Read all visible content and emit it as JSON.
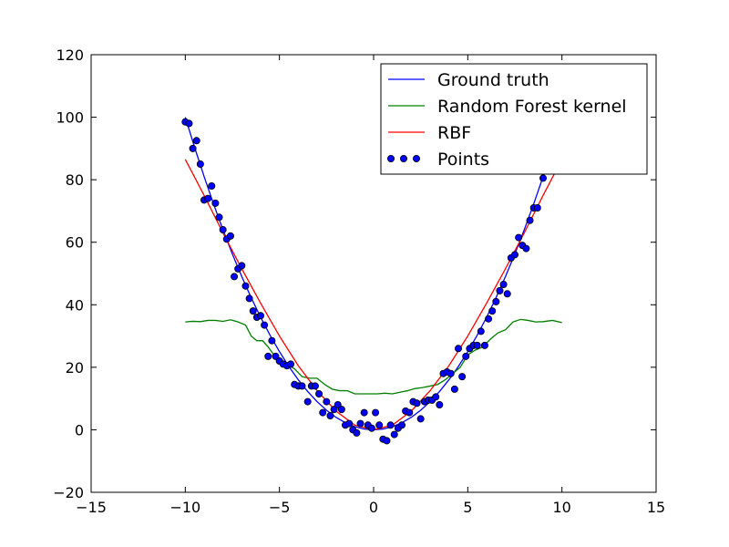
{
  "chart_data": {
    "type": "line",
    "title": "",
    "xlabel": "",
    "ylabel": "",
    "xlim": [
      -15,
      15
    ],
    "ylim": [
      -20,
      120
    ],
    "xticks": [
      -15,
      -10,
      -5,
      0,
      5,
      10,
      15
    ],
    "yticks": [
      -20,
      0,
      20,
      40,
      60,
      80,
      100,
      120
    ],
    "x_tick_labels": [
      "−15",
      "−10",
      "−5",
      "0",
      "5",
      "10",
      "15"
    ],
    "y_tick_labels": [
      "−20",
      "0",
      "20",
      "40",
      "60",
      "80",
      "100",
      "120"
    ],
    "grid": false,
    "legend_position": "top-right",
    "series": [
      {
        "name": "Ground truth",
        "kind": "line",
        "color": "#0000ff",
        "x": [
          -10,
          -9.5,
          -9,
          -8.5,
          -8,
          -7.5,
          -7,
          -6.5,
          -6,
          -5.5,
          -5,
          -4.5,
          -4,
          -3.5,
          -3,
          -2.5,
          -2,
          -1.5,
          -1,
          -0.5,
          0,
          0.5,
          1,
          1.5,
          2,
          2.5,
          3,
          3.5,
          4,
          4.5,
          5,
          5.5,
          6,
          6.5,
          7,
          7.5,
          8,
          8.5,
          9,
          9.5,
          10
        ],
        "y": [
          100,
          90.25,
          81,
          72.25,
          64,
          56.25,
          49,
          42.25,
          36,
          30.25,
          25,
          20.25,
          16,
          12.25,
          9,
          6.25,
          4,
          2.25,
          1,
          0.25,
          0,
          0.25,
          1,
          2.25,
          4,
          6.25,
          9,
          12.25,
          16,
          20.25,
          25,
          30.25,
          36,
          42.25,
          49,
          56.25,
          64,
          72.25,
          81,
          90.25,
          100
        ]
      },
      {
        "name": "Random Forest kernel",
        "kind": "line",
        "color": "#008000",
        "x": [
          -10,
          -9.6,
          -9.2,
          -8.8,
          -8.4,
          -8,
          -7.6,
          -7.2,
          -6.8,
          -6.5,
          -6.2,
          -5.9,
          -5.6,
          -5.3,
          -5,
          -4.6,
          -4.2,
          -3.8,
          -3.4,
          -3,
          -2.6,
          -2.2,
          -1.8,
          -1.4,
          -1,
          -0.6,
          -0.2,
          0.2,
          0.6,
          1,
          1.4,
          1.8,
          2.2,
          2.6,
          3,
          3.4,
          3.8,
          4.2,
          4.6,
          5,
          5.4,
          5.8,
          6.2,
          6.6,
          7,
          7.4,
          7.8,
          8.2,
          8.6,
          9,
          9.5,
          10
        ],
        "y": [
          34.5,
          34.7,
          34.6,
          35,
          35,
          34.7,
          35.2,
          34.5,
          33.5,
          30,
          28.5,
          28.5,
          26.5,
          24,
          22.5,
          21,
          19.5,
          17,
          16.5,
          16.5,
          14.5,
          13,
          12.5,
          12.5,
          11.5,
          11.5,
          11.5,
          11.5,
          11.7,
          11.5,
          12,
          12.5,
          13.2,
          13.5,
          14,
          14.5,
          16,
          18,
          20,
          24,
          25.5,
          26.5,
          29,
          31,
          32,
          34.5,
          35.3,
          35,
          34.5,
          34.6,
          35,
          34.3
        ]
      },
      {
        "name": "RBF",
        "kind": "line",
        "color": "#ff0000",
        "x": [
          -10,
          -9,
          -8,
          -7,
          -6,
          -5,
          -4,
          -3,
          -2,
          -1,
          0,
          1,
          2,
          3,
          4,
          5,
          6,
          7,
          8,
          9,
          10
        ],
        "y": [
          86.5,
          75,
          63,
          51.5,
          40.5,
          30,
          20.5,
          12.5,
          6,
          1.5,
          0,
          1.5,
          6,
          12.5,
          20.5,
          30,
          40.5,
          51.5,
          63,
          75,
          86.5
        ]
      }
    ],
    "scatter": {
      "name": "Points",
      "kind": "scatter",
      "color": "#0000ff",
      "edge_color": "#000000",
      "points": [
        [
          -10,
          98.5
        ],
        [
          -9.8,
          98
        ],
        [
          -9.6,
          90
        ],
        [
          -9.4,
          92.5
        ],
        [
          -9.2,
          85
        ],
        [
          -9,
          73.5
        ],
        [
          -8.8,
          74
        ],
        [
          -8.6,
          78
        ],
        [
          -8.4,
          72.5
        ],
        [
          -8.2,
          68
        ],
        [
          -8,
          64
        ],
        [
          -7.8,
          61
        ],
        [
          -7.6,
          62
        ],
        [
          -7.4,
          49
        ],
        [
          -7.2,
          51.5
        ],
        [
          -7,
          52.5
        ],
        [
          -6.8,
          46
        ],
        [
          -6.6,
          42
        ],
        [
          -6.4,
          38
        ],
        [
          -6.2,
          36
        ],
        [
          -6,
          36.5
        ],
        [
          -5.8,
          33.5
        ],
        [
          -5.6,
          23.5
        ],
        [
          -5.4,
          28.5
        ],
        [
          -5.2,
          23.5
        ],
        [
          -5,
          22
        ],
        [
          -4.8,
          21
        ],
        [
          -4.6,
          20.5
        ],
        [
          -4.4,
          21
        ],
        [
          -4.2,
          14.5
        ],
        [
          -4,
          14
        ],
        [
          -3.8,
          14
        ],
        [
          -3.5,
          9
        ],
        [
          -3.3,
          14
        ],
        [
          -3.1,
          14
        ],
        [
          -2.9,
          11.5
        ],
        [
          -2.7,
          5.5
        ],
        [
          -2.5,
          9
        ],
        [
          -2.3,
          4.5
        ],
        [
          -2.1,
          6.5
        ],
        [
          -1.9,
          8
        ],
        [
          -1.7,
          6.5
        ],
        [
          -1.5,
          1.5
        ],
        [
          -1.3,
          2
        ],
        [
          -1.1,
          0
        ],
        [
          -0.9,
          -1
        ],
        [
          -0.7,
          2
        ],
        [
          -0.5,
          5.5
        ],
        [
          -0.3,
          1.5
        ],
        [
          -0.1,
          0.5
        ],
        [
          0.1,
          5.5
        ],
        [
          0.3,
          1.5
        ],
        [
          0.5,
          -3
        ],
        [
          0.7,
          -3.5
        ],
        [
          0.9,
          1.5
        ],
        [
          1.1,
          -1.5
        ],
        [
          1.3,
          0.5
        ],
        [
          1.5,
          1.5
        ],
        [
          1.7,
          6
        ],
        [
          1.9,
          5.5
        ],
        [
          2.1,
          9
        ],
        [
          2.3,
          8.5
        ],
        [
          2.5,
          3.5
        ],
        [
          2.7,
          9
        ],
        [
          2.9,
          9.5
        ],
        [
          3.1,
          9.5
        ],
        [
          3.3,
          10.5
        ],
        [
          3.5,
          8
        ],
        [
          3.7,
          18
        ],
        [
          3.9,
          18.5
        ],
        [
          4.1,
          18
        ],
        [
          4.3,
          13
        ],
        [
          4.5,
          26
        ],
        [
          4.7,
          17
        ],
        [
          4.9,
          23.5
        ],
        [
          5.1,
          26
        ],
        [
          5.3,
          27
        ],
        [
          5.5,
          27
        ],
        [
          5.7,
          31.5
        ],
        [
          5.9,
          27
        ],
        [
          6.1,
          35.5
        ],
        [
          6.3,
          38
        ],
        [
          6.5,
          41
        ],
        [
          6.7,
          44.5
        ],
        [
          6.9,
          46.5
        ],
        [
          7.1,
          43.5
        ],
        [
          7.3,
          55
        ],
        [
          7.5,
          56
        ],
        [
          7.7,
          61.5
        ],
        [
          7.9,
          59
        ],
        [
          8.1,
          58
        ],
        [
          8.3,
          67
        ],
        [
          8.5,
          71
        ],
        [
          8.7,
          71
        ],
        [
          9,
          80.5
        ]
      ]
    },
    "legend": [
      {
        "label": "Ground truth",
        "kind": "line",
        "color": "#0000ff"
      },
      {
        "label": "Random Forest kernel",
        "kind": "line",
        "color": "#008000"
      },
      {
        "label": "RBF",
        "kind": "line",
        "color": "#ff0000"
      },
      {
        "label": "Points",
        "kind": "scatter",
        "color": "#0000ff"
      }
    ]
  }
}
